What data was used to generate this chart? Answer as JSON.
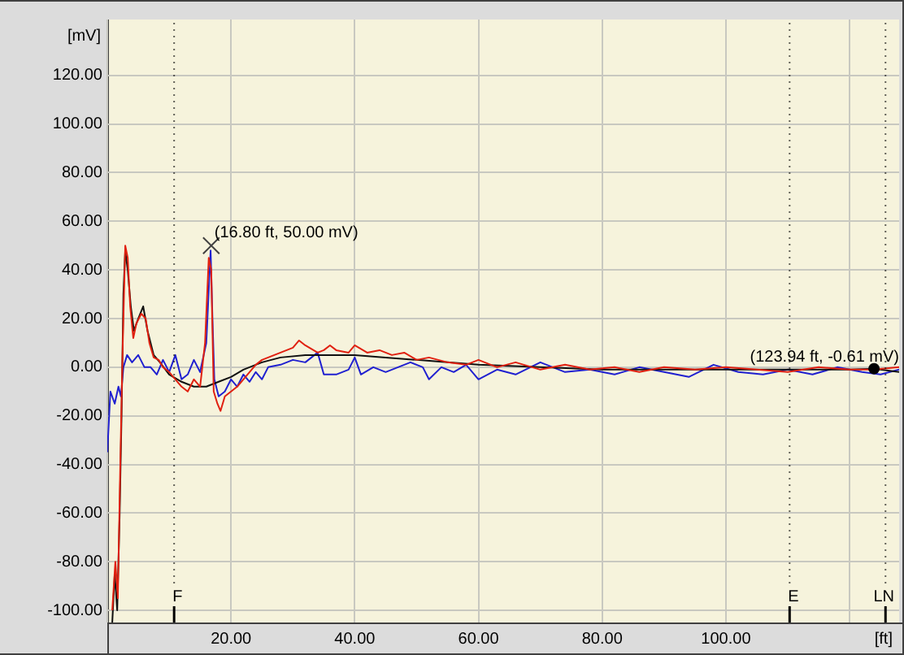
{
  "chart_data": {
    "type": "line",
    "xlabel": "[ft]",
    "ylabel": "[mV]",
    "grid": true,
    "legend": false,
    "marker": "none",
    "line_style": "solid",
    "xlim": [
      0,
      128
    ],
    "ylim": [
      -105,
      143
    ],
    "xticks": [
      {
        "value": 0,
        "label": null
      },
      {
        "value": 20,
        "label": "20.00"
      },
      {
        "value": 40,
        "label": "40.00"
      },
      {
        "value": 60,
        "label": "60.00"
      },
      {
        "value": 80,
        "label": "80.00"
      },
      {
        "value": 100,
        "label": "100.00"
      },
      {
        "value": 120,
        "label": null
      }
    ],
    "yticks": [
      {
        "value": -100,
        "label": "-100.00"
      },
      {
        "value": -80,
        "label": "-80.00"
      },
      {
        "value": -60,
        "label": "-60.00"
      },
      {
        "value": -40,
        "label": "-40.00"
      },
      {
        "value": -20,
        "label": "-20.00"
      },
      {
        "value": 0,
        "label": "0.00"
      },
      {
        "value": 20,
        "label": "20.00"
      },
      {
        "value": 40,
        "label": "40.00"
      },
      {
        "value": 60,
        "label": "60.00"
      },
      {
        "value": 80,
        "label": "80.00"
      },
      {
        "value": 100,
        "label": "100.00"
      },
      {
        "value": 120,
        "label": "120.00"
      }
    ],
    "ref_lines": [
      {
        "axis": "x",
        "value": 10.8,
        "label": "F",
        "color": "#000000",
        "line_style": "dotted"
      },
      {
        "axis": "x",
        "value": 110.3,
        "label": "E",
        "color": "#000000",
        "line_style": "dotted"
      },
      {
        "axis": "x",
        "value": 125.8,
        "label": "LN",
        "color": "#000000",
        "line_style": "dotted"
      }
    ],
    "annotations": [
      {
        "text": "(16.80 ft, 50.00 mV)",
        "x": 16.8,
        "y": 50
      },
      {
        "text": "(123.94 ft, -0.61 mV)",
        "x": 123.94,
        "y": -0.61
      }
    ],
    "series": [
      {
        "color": "#e02010",
        "x": [
          0.8,
          1.3,
          1.7,
          2.1,
          2.5,
          2.9,
          3.3,
          3.7,
          4.2,
          4.7,
          5.5,
          6.2,
          6.8,
          7.5,
          8.3,
          9,
          10,
          11,
          12,
          13,
          14,
          15,
          15.8,
          16.4,
          16.8,
          17.2,
          17.8,
          18.3,
          19,
          20,
          21,
          22,
          23,
          24,
          25,
          26,
          28,
          30,
          31,
          32,
          34,
          35,
          36,
          37,
          39,
          40,
          42,
          44,
          46,
          48,
          50,
          52,
          55,
          58,
          60,
          63,
          66,
          70,
          74,
          78,
          82,
          86,
          90,
          95,
          100,
          105,
          110,
          115,
          120,
          124,
          128
        ],
        "values": [
          -100,
          -80,
          -95,
          -40,
          10,
          50,
          45,
          25,
          12,
          18,
          22,
          20,
          10,
          4,
          3,
          0,
          -2,
          -5,
          -8,
          -10,
          -5,
          -8,
          10,
          45,
          40,
          -10,
          -15,
          -18,
          -12,
          -10,
          -8,
          -5,
          -2,
          1,
          3,
          4,
          6,
          8,
          11,
          9,
          6,
          7,
          9,
          7,
          6,
          9,
          6,
          7,
          5,
          6,
          3,
          4,
          2,
          1,
          3,
          0,
          2,
          -1,
          1,
          -1,
          0,
          -2,
          0,
          -1,
          0,
          -1,
          -2,
          0,
          -1,
          -1,
          0
        ]
      },
      {
        "color": "#101010",
        "x": [
          0.8,
          1.2,
          1.6,
          2,
          2.3,
          2.6,
          2.9,
          3.3,
          3.8,
          4.3,
          5,
          5.8,
          6.5,
          7.5,
          8.5,
          10,
          12,
          14,
          16,
          18,
          20,
          22,
          25,
          28,
          32,
          36,
          40,
          45,
          50,
          60,
          70,
          80,
          90,
          100,
          110,
          120,
          123.94,
          128
        ],
        "values": [
          -105,
          -85,
          -100,
          -60,
          -20,
          30,
          48,
          40,
          25,
          15,
          20,
          25,
          15,
          5,
          2,
          -3,
          -6,
          -8,
          -8,
          -6,
          -4,
          -1,
          2,
          4,
          5,
          5,
          5,
          4,
          3,
          1,
          0,
          -1,
          -1,
          -1,
          -1,
          -1,
          -0.61,
          -2
        ]
      },
      {
        "color": "#2020d0",
        "x": [
          0,
          0.5,
          1.2,
          1.8,
          2.2,
          2.6,
          3.2,
          4,
          5,
          6,
          7,
          8,
          9,
          10,
          11,
          12,
          13,
          14,
          15,
          16,
          16.7,
          17,
          17.3,
          18,
          19,
          20,
          21,
          22,
          23,
          24,
          25,
          26,
          28,
          30,
          32,
          34,
          35,
          37,
          39,
          40,
          41,
          43,
          45,
          47,
          49,
          51,
          52,
          54,
          56,
          58,
          60,
          63,
          66,
          70,
          74,
          78,
          82,
          86,
          90,
          94,
          98,
          102,
          106,
          110,
          114,
          118,
          122,
          125,
          128
        ],
        "values": [
          -35,
          -10,
          -15,
          -8,
          -12,
          0,
          5,
          2,
          5,
          0,
          0,
          -3,
          3,
          -2,
          5,
          -5,
          -3,
          3,
          -2,
          10,
          48,
          20,
          -5,
          -12,
          -10,
          -5,
          -8,
          -3,
          -6,
          -2,
          -5,
          0,
          1,
          3,
          2,
          6,
          -3,
          -3,
          -1,
          4,
          -3,
          0,
          -2,
          0,
          2,
          0,
          -5,
          0,
          -2,
          1,
          -5,
          -1,
          -3,
          2,
          -2,
          -1,
          -3,
          0,
          -2,
          -4,
          1,
          -2,
          -3,
          -1,
          -3,
          0,
          -2,
          -3,
          -1
        ]
      }
    ]
  }
}
